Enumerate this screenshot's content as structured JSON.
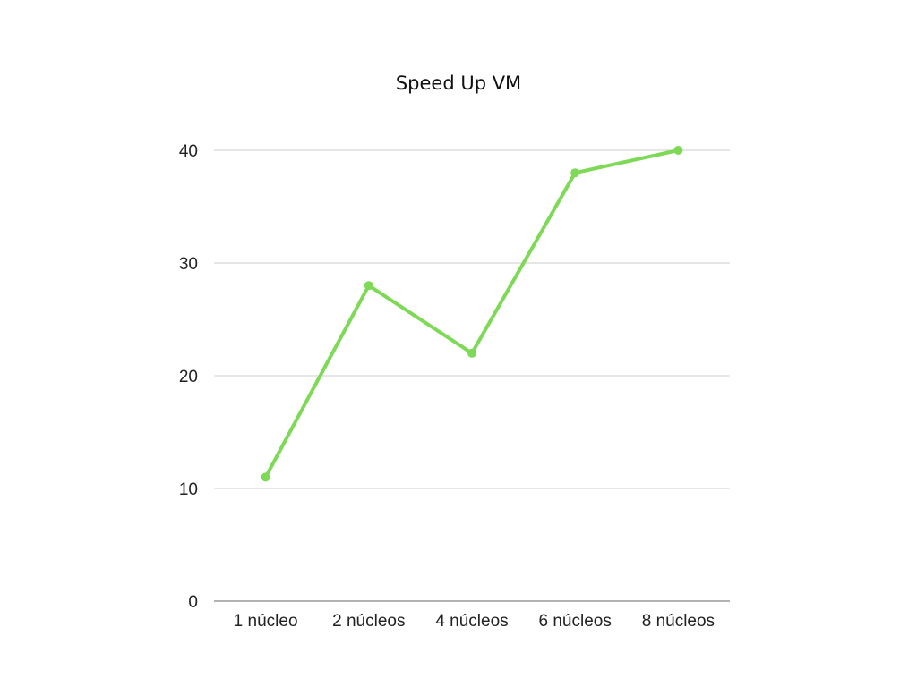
{
  "chart_data": {
    "type": "line",
    "title": "Speed Up VM",
    "xlabel": "",
    "ylabel": "",
    "categories": [
      "1 núcleo",
      "2 núcleos",
      "4 núcleos",
      "6 núcleos",
      "8 núcleos"
    ],
    "series": [
      {
        "values": [
          11,
          28,
          22,
          38,
          40
        ],
        "color": "#7ed957"
      }
    ],
    "ylim": [
      0,
      40
    ],
    "yticks": [
      0,
      10,
      20,
      30,
      40
    ],
    "grid": true,
    "legend": "none"
  }
}
